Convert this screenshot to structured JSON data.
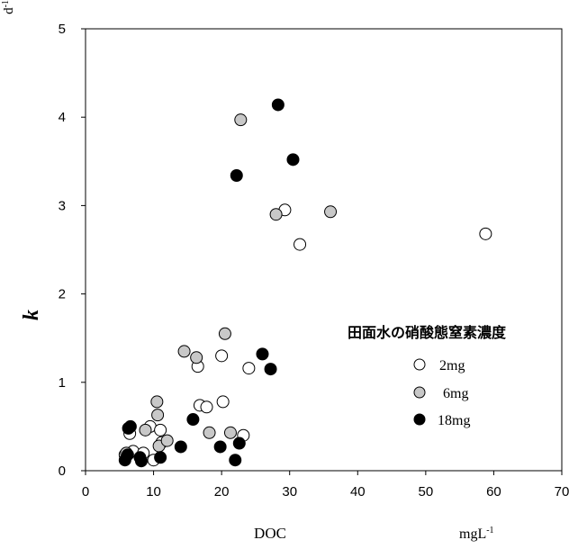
{
  "chart_data": {
    "type": "scatter",
    "xlabel": "DOC",
    "xunit": "mgL",
    "xunit_sup": "-1",
    "ylabel": "k",
    "yunit": "d",
    "yunit_sup": "-1",
    "xlim": [
      0,
      70
    ],
    "ylim": [
      0,
      5
    ],
    "xticks": [
      "0",
      "10",
      "20",
      "30",
      "40",
      "50",
      "60",
      "70"
    ],
    "yticks": [
      "0",
      "1",
      "2",
      "3",
      "4",
      "5"
    ],
    "grid": false,
    "legend_title": "田面水の硝酸態窒素濃度",
    "legend_position": "right",
    "series": [
      {
        "name": "2mg",
        "fill": "#ffffff",
        "points": [
          [
            6.5,
            0.42
          ],
          [
            7.0,
            0.22
          ],
          [
            9.5,
            0.5
          ],
          [
            10.0,
            0.12
          ],
          [
            11.2,
            0.32
          ],
          [
            11.0,
            0.46
          ],
          [
            16.5,
            1.18
          ],
          [
            16.8,
            0.74
          ],
          [
            17.8,
            0.72
          ],
          [
            20.0,
            1.3
          ],
          [
            20.2,
            0.78
          ],
          [
            23.2,
            0.4
          ],
          [
            24.0,
            1.16
          ],
          [
            29.3,
            2.95
          ],
          [
            31.5,
            2.56
          ],
          [
            58.8,
            2.68
          ],
          [
            5.8,
            0.18
          ],
          [
            8.5,
            0.2
          ]
        ]
      },
      {
        "name": "6mg",
        "fill": "#c8c8c8",
        "points": [
          [
            6.0,
            0.2
          ],
          [
            8.8,
            0.46
          ],
          [
            10.5,
            0.78
          ],
          [
            10.6,
            0.63
          ],
          [
            10.8,
            0.28
          ],
          [
            12.0,
            0.34
          ],
          [
            14.5,
            1.35
          ],
          [
            16.3,
            1.28
          ],
          [
            18.2,
            0.43
          ],
          [
            20.5,
            1.55
          ],
          [
            21.3,
            0.43
          ],
          [
            22.8,
            3.97
          ],
          [
            28.0,
            2.9
          ],
          [
            36.0,
            2.93
          ]
        ]
      },
      {
        "name": "18mg",
        "fill": "#000000",
        "points": [
          [
            5.8,
            0.12
          ],
          [
            6.2,
            0.18
          ],
          [
            6.3,
            0.48
          ],
          [
            6.6,
            0.5
          ],
          [
            8.0,
            0.15
          ],
          [
            8.2,
            0.11
          ],
          [
            11.0,
            0.15
          ],
          [
            14.0,
            0.27
          ],
          [
            15.8,
            0.58
          ],
          [
            19.8,
            0.27
          ],
          [
            22.0,
            0.12
          ],
          [
            22.2,
            3.34
          ],
          [
            22.6,
            0.31
          ],
          [
            26.0,
            1.32
          ],
          [
            27.2,
            1.15
          ],
          [
            28.3,
            4.14
          ],
          [
            30.5,
            3.52
          ]
        ]
      }
    ]
  }
}
